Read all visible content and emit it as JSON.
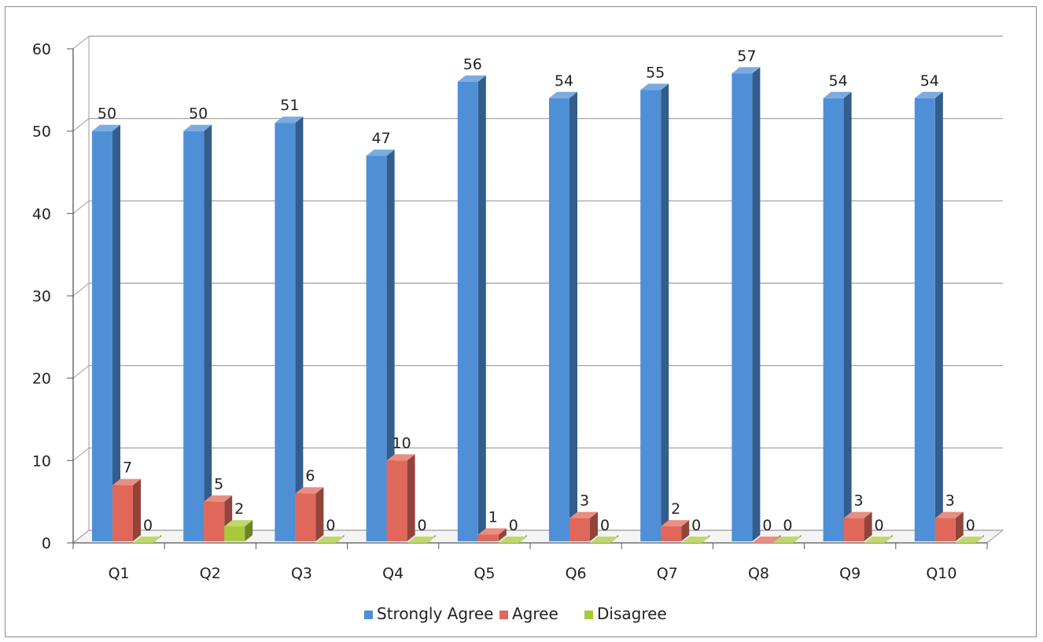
{
  "chart_data": {
    "type": "bar",
    "categories": [
      "Q1",
      "Q2",
      "Q3",
      "Q4",
      "Q5",
      "Q6",
      "Q7",
      "Q8",
      "Q9",
      "Q10"
    ],
    "series": [
      {
        "name": "Strongly Agree",
        "color": "#4f8fd6",
        "values": [
          50,
          50,
          51,
          47,
          56,
          54,
          55,
          57,
          54,
          54
        ]
      },
      {
        "name": "Agree",
        "color": "#e0685a",
        "values": [
          7,
          5,
          6,
          10,
          1,
          3,
          2,
          0,
          3,
          3
        ]
      },
      {
        "name": "Disagree",
        "color": "#a9c93c",
        "values": [
          0,
          2,
          0,
          0,
          0,
          0,
          0,
          0,
          0,
          0
        ]
      }
    ],
    "yticks": [
      "0",
      "10",
      "20",
      "30",
      "40",
      "50",
      "60"
    ],
    "ylim": [
      0,
      60
    ],
    "grid": true,
    "legend_position": "bottom",
    "style": "3d-column"
  }
}
